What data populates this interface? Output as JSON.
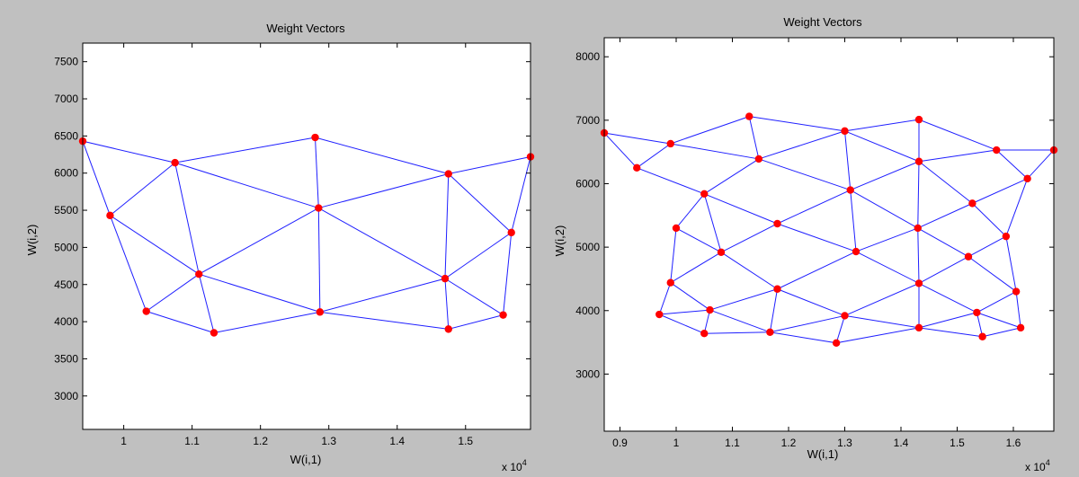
{
  "figure": {
    "background": "#c0c0c0",
    "axes_background": "#ffffff",
    "line_color": "#1f1fff",
    "marker_color": "#ff0000"
  },
  "chart_data": [
    {
      "type": "scatter",
      "title": "Weight Vectors",
      "xlabel": "W(i,1)",
      "ylabel": "W(i,2)",
      "x_exponent_label": "x 10",
      "x_exponent_power": "4",
      "xlim": [
        0.94,
        1.595
      ],
      "ylim": [
        2550,
        7750
      ],
      "xticks": [
        1,
        1.1,
        1.2,
        1.3,
        1.4,
        1.5
      ],
      "xtick_labels": [
        "1",
        "1.1",
        "1.2",
        "1.3",
        "1.4",
        "1.5"
      ],
      "yticks": [
        3000,
        3500,
        4000,
        4500,
        5000,
        5500,
        6000,
        6500,
        7000,
        7500
      ],
      "ytick_labels": [
        "3000",
        "3500",
        "4000",
        "4500",
        "5000",
        "5500",
        "6000",
        "6500",
        "7000",
        "7500"
      ],
      "grid": false,
      "nodes": [
        [
          0.94,
          6430
        ],
        [
          1.075,
          6140
        ],
        [
          1.28,
          6480
        ],
        [
          1.475,
          5990
        ],
        [
          1.595,
          6220
        ],
        [
          0.98,
          5430
        ],
        [
          1.285,
          5530
        ],
        [
          1.567,
          5200
        ],
        [
          1.11,
          4640
        ],
        [
          1.47,
          4580
        ],
        [
          1.033,
          4140
        ],
        [
          1.287,
          4130
        ],
        [
          1.555,
          4090
        ],
        [
          1.132,
          3850
        ],
        [
          1.475,
          3900
        ]
      ],
      "edges": [
        [
          0,
          1
        ],
        [
          1,
          2
        ],
        [
          2,
          3
        ],
        [
          3,
          4
        ],
        [
          0,
          5
        ],
        [
          1,
          5
        ],
        [
          1,
          6
        ],
        [
          2,
          6
        ],
        [
          3,
          6
        ],
        [
          3,
          7
        ],
        [
          4,
          7
        ],
        [
          5,
          8
        ],
        [
          1,
          8
        ],
        [
          6,
          8
        ],
        [
          6,
          11
        ],
        [
          6,
          9
        ],
        [
          3,
          9
        ],
        [
          7,
          9
        ],
        [
          5,
          10
        ],
        [
          8,
          10
        ],
        [
          8,
          13
        ],
        [
          8,
          11
        ],
        [
          9,
          11
        ],
        [
          9,
          14
        ],
        [
          9,
          12
        ],
        [
          7,
          12
        ],
        [
          10,
          13
        ],
        [
          13,
          11
        ],
        [
          11,
          14
        ],
        [
          14,
          12
        ]
      ]
    },
    {
      "type": "scatter",
      "title": "Weight Vectors",
      "xlabel": "W(i,1)",
      "ylabel": "W(i,2)",
      "x_exponent_label": "x 10",
      "x_exponent_power": "4",
      "xlim": [
        0.872,
        1.672
      ],
      "ylim": [
        2100,
        8300
      ],
      "xticks": [
        0.9,
        1,
        1.1,
        1.2,
        1.3,
        1.4,
        1.5,
        1.6
      ],
      "xtick_labels": [
        "0.9",
        "1",
        "1.1",
        "1.2",
        "1.3",
        "1.4",
        "1.5",
        "1.6"
      ],
      "yticks": [
        3000,
        4000,
        5000,
        6000,
        7000,
        8000
      ],
      "ytick_labels": [
        "3000",
        "4000",
        "5000",
        "6000",
        "7000",
        "8000"
      ],
      "grid": false,
      "nodes": [
        [
          0.872,
          6800
        ],
        [
          0.99,
          6630
        ],
        [
          1.13,
          7060
        ],
        [
          1.3,
          6830
        ],
        [
          1.432,
          7010
        ],
        [
          1.57,
          6530
        ],
        [
          1.672,
          6530
        ],
        [
          0.93,
          6250
        ],
        [
          1.147,
          6390
        ],
        [
          1.432,
          6350
        ],
        [
          1.625,
          6080
        ],
        [
          1.05,
          5840
        ],
        [
          1.31,
          5900
        ],
        [
          1.527,
          5690
        ],
        [
          1.0,
          5300
        ],
        [
          1.18,
          5370
        ],
        [
          1.43,
          5300
        ],
        [
          1.587,
          5170
        ],
        [
          1.08,
          4920
        ],
        [
          1.32,
          4930
        ],
        [
          1.52,
          4850
        ],
        [
          0.99,
          4440
        ],
        [
          1.18,
          4340
        ],
        [
          1.432,
          4430
        ],
        [
          1.605,
          4300
        ],
        [
          0.97,
          3940
        ],
        [
          1.06,
          4010
        ],
        [
          1.3,
          3920
        ],
        [
          1.535,
          3970
        ],
        [
          1.05,
          3640
        ],
        [
          1.167,
          3660
        ],
        [
          1.285,
          3490
        ],
        [
          1.432,
          3730
        ],
        [
          1.545,
          3590
        ],
        [
          1.613,
          3730
        ]
      ],
      "edges": [
        [
          0,
          1
        ],
        [
          1,
          2
        ],
        [
          2,
          3
        ],
        [
          3,
          4
        ],
        [
          4,
          5
        ],
        [
          5,
          6
        ],
        [
          0,
          7
        ],
        [
          1,
          7
        ],
        [
          1,
          8
        ],
        [
          2,
          8
        ],
        [
          3,
          8
        ],
        [
          3,
          9
        ],
        [
          4,
          9
        ],
        [
          9,
          5
        ],
        [
          5,
          10
        ],
        [
          6,
          10
        ],
        [
          7,
          11
        ],
        [
          8,
          11
        ],
        [
          8,
          12
        ],
        [
          3,
          12
        ],
        [
          9,
          12
        ],
        [
          9,
          13
        ],
        [
          10,
          13
        ],
        [
          11,
          14
        ],
        [
          11,
          15
        ],
        [
          12,
          15
        ],
        [
          12,
          16
        ],
        [
          9,
          16
        ],
        [
          13,
          16
        ],
        [
          13,
          17
        ],
        [
          10,
          17
        ],
        [
          14,
          18
        ],
        [
          11,
          18
        ],
        [
          15,
          18
        ],
        [
          15,
          19
        ],
        [
          12,
          19
        ],
        [
          16,
          19
        ],
        [
          16,
          20
        ],
        [
          17,
          20
        ],
        [
          14,
          21
        ],
        [
          18,
          21
        ],
        [
          18,
          22
        ],
        [
          19,
          22
        ],
        [
          19,
          23
        ],
        [
          16,
          23
        ],
        [
          20,
          23
        ],
        [
          20,
          24
        ],
        [
          17,
          24
        ],
        [
          21,
          25
        ],
        [
          21,
          26
        ],
        [
          22,
          26
        ],
        [
          22,
          27
        ],
        [
          23,
          27
        ],
        [
          23,
          28
        ],
        [
          24,
          28
        ],
        [
          25,
          26
        ],
        [
          25,
          29
        ],
        [
          26,
          29
        ],
        [
          26,
          30
        ],
        [
          22,
          30
        ],
        [
          27,
          30
        ],
        [
          27,
          31
        ],
        [
          27,
          32
        ],
        [
          23,
          32
        ],
        [
          28,
          32
        ],
        [
          28,
          33
        ],
        [
          28,
          34
        ],
        [
          24,
          34
        ],
        [
          29,
          30
        ],
        [
          30,
          31
        ],
        [
          31,
          32
        ],
        [
          32,
          33
        ],
        [
          33,
          34
        ]
      ]
    }
  ]
}
